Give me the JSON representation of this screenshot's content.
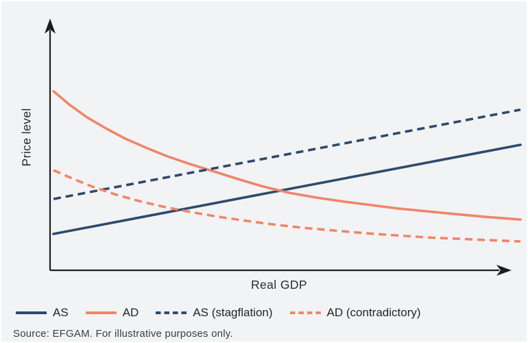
{
  "page": {
    "background_color": "#f2f3f5",
    "source_note": "Source: EFGAM. For illustrative purposes only."
  },
  "chart_data": {
    "type": "line",
    "title": "",
    "xlabel": "Real GDP",
    "ylabel": "Price level",
    "axes": {
      "numeric_ticks": false,
      "style": "arrows",
      "color": "#1d1d1f",
      "grid": false
    },
    "x_range": [
      0,
      100
    ],
    "y_range": [
      0,
      100
    ],
    "legend_position": "bottom",
    "series": [
      {
        "name": "AS",
        "color": "#2e4a6b",
        "style": "solid",
        "points": [
          [
            0,
            18.2
          ],
          [
            100,
            64.6
          ]
        ]
      },
      {
        "name": "AD",
        "color": "#ef8667",
        "style": "solid",
        "points": [
          [
            0,
            92.5
          ],
          [
            3.5,
            85.4
          ],
          [
            7.2,
            78.9
          ],
          [
            11.2,
            73.2
          ],
          [
            15.3,
            67.9
          ],
          [
            19.7,
            63.2
          ],
          [
            24.4,
            58.6
          ],
          [
            29.2,
            54.6
          ],
          [
            34.4,
            50.7
          ],
          [
            39.5,
            46.8
          ],
          [
            44.9,
            42.9
          ],
          [
            50.5,
            39.6
          ],
          [
            56.4,
            37.1
          ],
          [
            62.3,
            35.0
          ],
          [
            68.1,
            33.2
          ],
          [
            74.0,
            31.4
          ],
          [
            79.9,
            30.0
          ],
          [
            85.8,
            28.6
          ],
          [
            92.4,
            27.1
          ],
          [
            100,
            25.7
          ]
        ]
      },
      {
        "name": "AS (stagflation)",
        "color": "#2e4a6b",
        "style": "dashed",
        "points": [
          [
            0,
            36.4
          ],
          [
            100,
            82.9
          ]
        ]
      },
      {
        "name": "AD (contradictory)",
        "color": "#ef8667",
        "style": "dashed",
        "points": [
          [
            0,
            51.4
          ],
          [
            4.3,
            46.8
          ],
          [
            8.7,
            42.5
          ],
          [
            13.1,
            38.9
          ],
          [
            18.2,
            35.4
          ],
          [
            23.3,
            32.5
          ],
          [
            28.5,
            30.0
          ],
          [
            34.4,
            27.5
          ],
          [
            40.2,
            25.4
          ],
          [
            46.8,
            23.2
          ],
          [
            53.5,
            21.4
          ],
          [
            60.1,
            20.0
          ],
          [
            66.7,
            18.6
          ],
          [
            73.3,
            17.5
          ],
          [
            79.9,
            16.4
          ],
          [
            86.5,
            15.7
          ],
          [
            93.1,
            15.0
          ],
          [
            100,
            14.3
          ]
        ]
      }
    ]
  }
}
